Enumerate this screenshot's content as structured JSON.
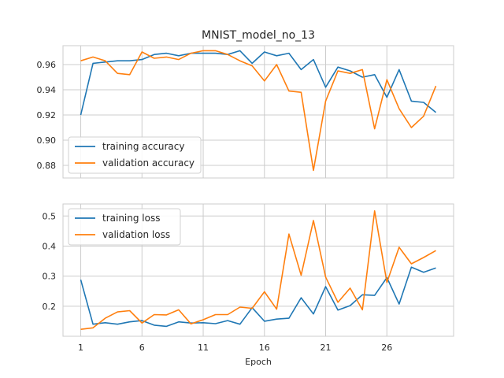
{
  "chart_data": {
    "type": "line",
    "title": "MNIST_model_no_13",
    "xlabel": "Epoch",
    "x": [
      1,
      2,
      3,
      4,
      5,
      6,
      7,
      8,
      9,
      10,
      11,
      12,
      13,
      14,
      15,
      16,
      17,
      18,
      19,
      20,
      21,
      22,
      23,
      24,
      25,
      26,
      27,
      28,
      29,
      30
    ],
    "x_ticks": [
      1,
      6,
      11,
      16,
      21,
      26
    ],
    "colors": {
      "training": "#1f77b4",
      "validation": "#ff7f0e"
    },
    "grid": true,
    "panels": [
      {
        "name": "accuracy",
        "ylim": [
          0.87,
          0.975
        ],
        "y_ticks": [
          0.88,
          0.9,
          0.92,
          0.94,
          0.96
        ],
        "y_tick_labels": [
          "0.88",
          "0.90",
          "0.92",
          "0.94",
          "0.96"
        ],
        "legend_position": "lower-left",
        "series": [
          {
            "name": "training accuracy",
            "color": "#1f77b4",
            "values": [
              0.92,
              0.961,
              0.962,
              0.963,
              0.963,
              0.964,
              0.968,
              0.969,
              0.967,
              0.969,
              0.969,
              0.969,
              0.968,
              0.971,
              0.961,
              0.97,
              0.967,
              0.969,
              0.956,
              0.964,
              0.942,
              0.958,
              0.955,
              0.95,
              0.952,
              0.934,
              0.956,
              0.931,
              0.93,
              0.922
            ]
          },
          {
            "name": "validation accuracy",
            "color": "#ff7f0e",
            "values": [
              0.963,
              0.966,
              0.963,
              0.953,
              0.952,
              0.97,
              0.965,
              0.966,
              0.964,
              0.969,
              0.971,
              0.971,
              0.968,
              0.963,
              0.959,
              0.947,
              0.96,
              0.939,
              0.938,
              0.876,
              0.931,
              0.955,
              0.953,
              0.956,
              0.909,
              0.948,
              0.925,
              0.91,
              0.919,
              0.943
            ]
          }
        ]
      },
      {
        "name": "loss",
        "ylim": [
          0.1,
          0.54
        ],
        "y_ticks": [
          0.2,
          0.3,
          0.4,
          0.5
        ],
        "y_tick_labels": [
          "0.2",
          "0.3",
          "0.4",
          "0.5"
        ],
        "legend_position": "upper-left",
        "series": [
          {
            "name": "training loss",
            "color": "#1f77b4",
            "values": [
              0.288,
              0.14,
              0.145,
              0.14,
              0.148,
              0.152,
              0.137,
              0.133,
              0.148,
              0.144,
              0.145,
              0.142,
              0.152,
              0.14,
              0.195,
              0.15,
              0.157,
              0.16,
              0.228,
              0.174,
              0.265,
              0.187,
              0.202,
              0.238,
              0.236,
              0.295,
              0.207,
              0.33,
              0.313,
              0.327
            ]
          },
          {
            "name": "validation loss",
            "color": "#ff7f0e",
            "values": [
              0.123,
              0.128,
              0.16,
              0.181,
              0.185,
              0.144,
              0.172,
              0.171,
              0.188,
              0.141,
              0.155,
              0.172,
              0.172,
              0.197,
              0.193,
              0.248,
              0.19,
              0.44,
              0.303,
              0.485,
              0.297,
              0.213,
              0.26,
              0.188,
              0.517,
              0.279,
              0.396,
              0.341,
              0.362,
              0.385
            ]
          }
        ]
      }
    ]
  }
}
